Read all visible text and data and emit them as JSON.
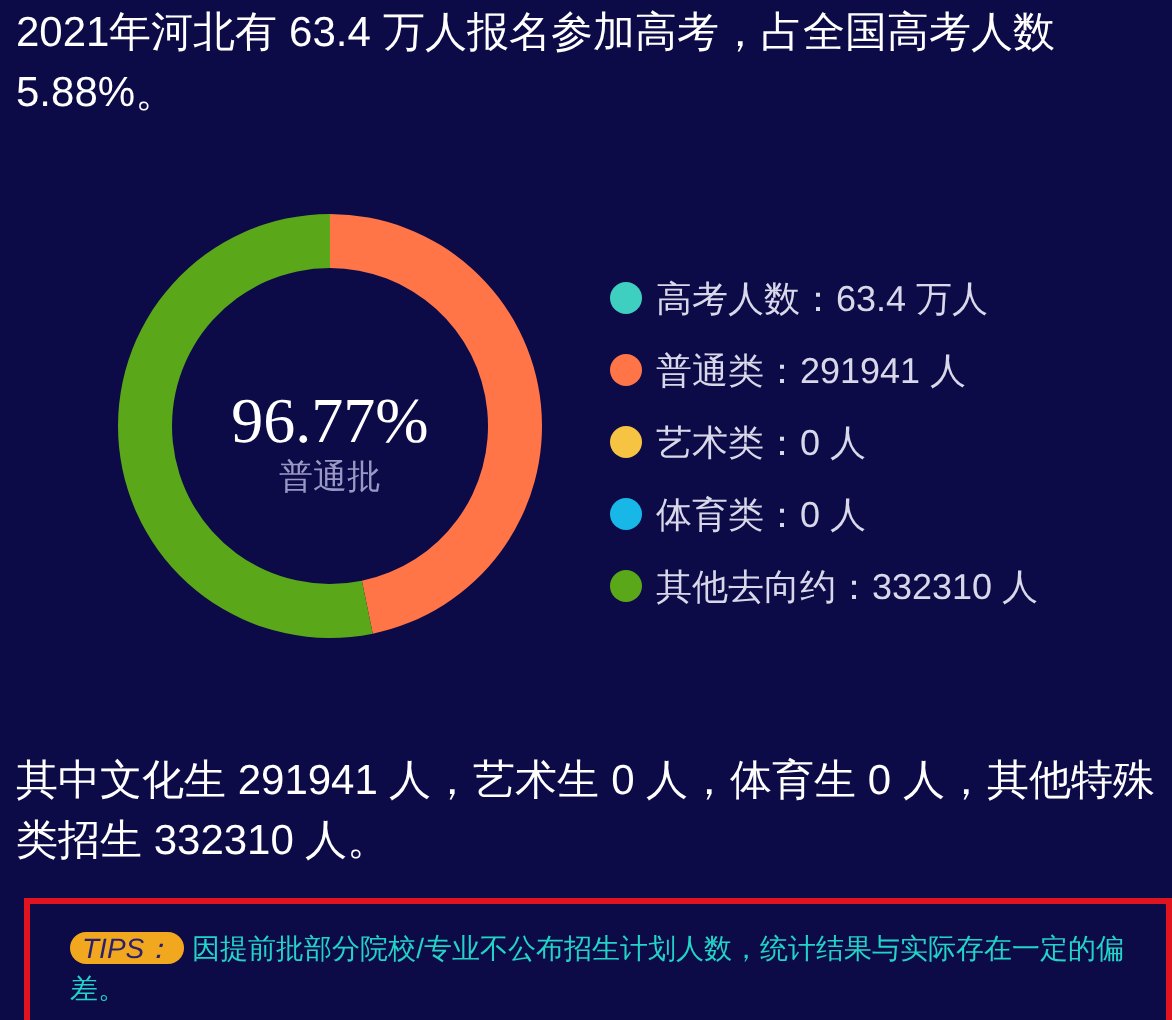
{
  "chart_data": {
    "type": "donut",
    "title": "2021年河北有 63.4 万人报名参加高考，占全国高考人数 5.88%。",
    "categories": [
      "高考人数",
      "普通类",
      "艺术类",
      "体育类",
      "其他去向约"
    ],
    "values": [
      null,
      291941,
      0,
      0,
      332310
    ],
    "value_labels": [
      "63.4 万人",
      "291941 人",
      "0 人",
      "0 人",
      "332310 人"
    ],
    "colors": [
      "#3ecfc0",
      "#ff7548",
      "#f7c342",
      "#17b8e8",
      "#5aa81a"
    ],
    "legend": "right",
    "annotations": [
      "96.77%",
      "普通批",
      "其中文化生 291941 人，艺术生 0 人，体育生 0 人，其他特殊类招生 332310 人。",
      "TIPS：",
      "因提前批部分院校/专业不公布招生计划人数，统计结果与实际存在一定的偏差。"
    ]
  }
}
